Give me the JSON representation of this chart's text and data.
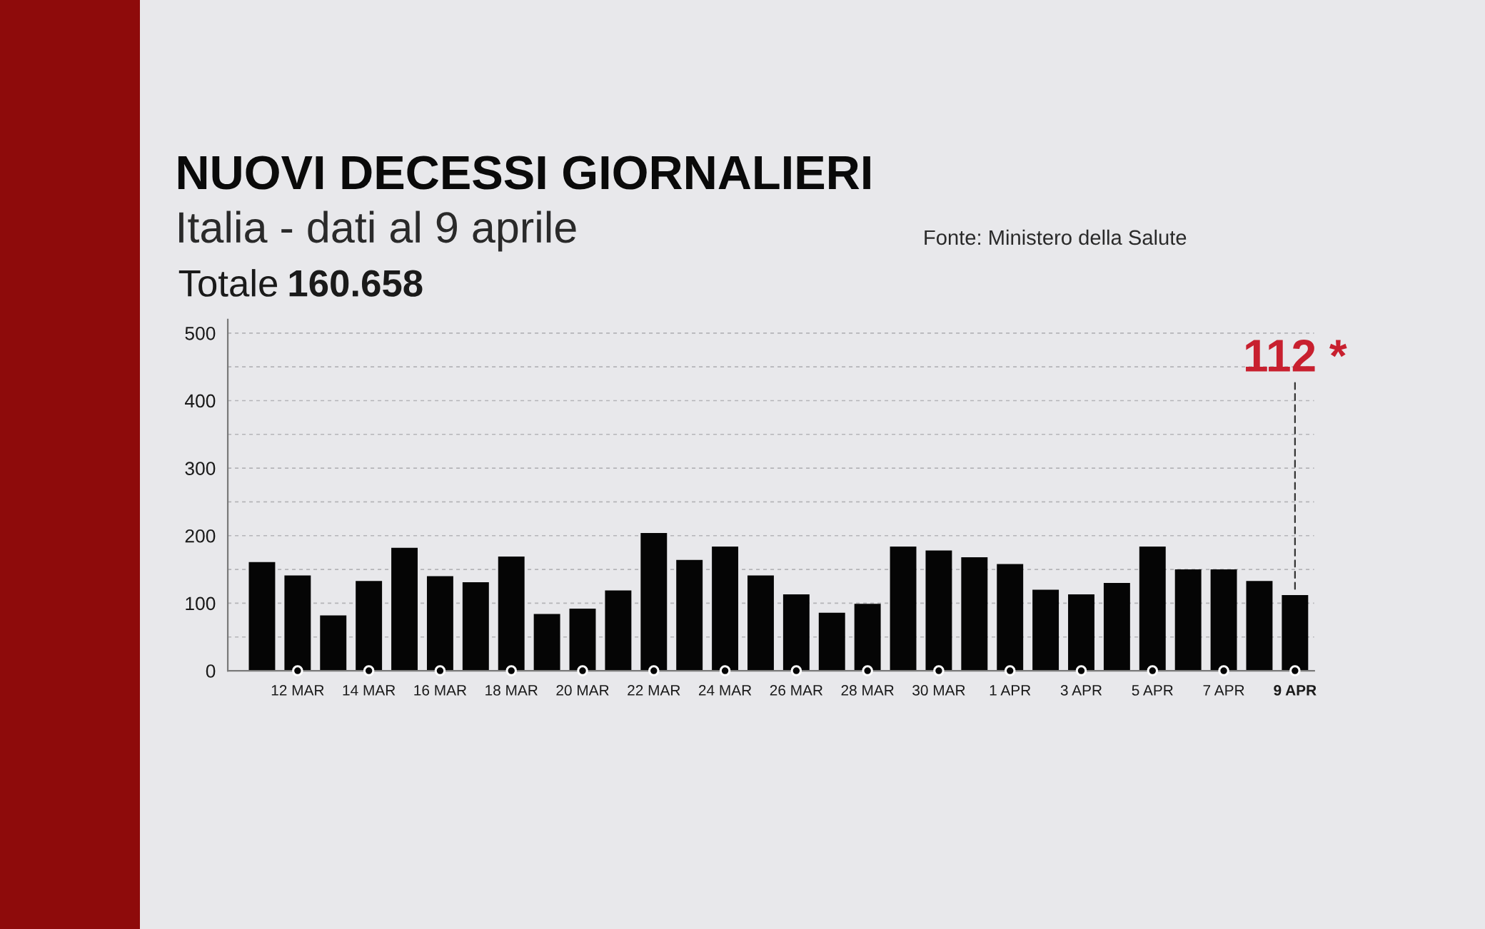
{
  "chart_data": {
    "type": "bar",
    "title": "NUOVI DECESSI GIORNALIERI",
    "subtitle": "Italia - dati al 9 aprile",
    "categories": [
      null,
      "12 MAR",
      null,
      "14 MAR",
      null,
      "16 MAR",
      null,
      "18 MAR",
      null,
      "20 MAR",
      null,
      "22 MAR",
      null,
      "24 MAR",
      null,
      "26 MAR",
      null,
      "28 MAR",
      null,
      "30 MAR",
      null,
      "1 APR",
      null,
      "3 APR",
      null,
      "5 APR",
      null,
      "7 APR",
      null,
      "9 APR"
    ],
    "values": [
      161,
      141,
      82,
      133,
      182,
      140,
      131,
      169,
      84,
      92,
      119,
      204,
      164,
      184,
      141,
      113,
      86,
      99,
      184,
      178,
      168,
      158,
      120,
      113,
      130,
      184,
      150,
      150,
      133,
      112
    ],
    "color": "#050505",
    "ylim": [
      0,
      520
    ],
    "yticks": [
      0,
      {
        "value": 50,
        "label": null
      },
      100,
      {
        "value": 150,
        "label": null
      },
      200,
      {
        "value": 250,
        "label": null
      },
      300,
      {
        "value": 350,
        "label": null
      },
      400,
      {
        "value": 450,
        "label": null
      },
      500
    ],
    "grid": "y",
    "annotations": [
      "Totale 160.658",
      "Fonte: Ministero della Salute",
      {
        "text": "112 *",
        "x": "9 APR",
        "y": 112
      }
    ]
  }
}
